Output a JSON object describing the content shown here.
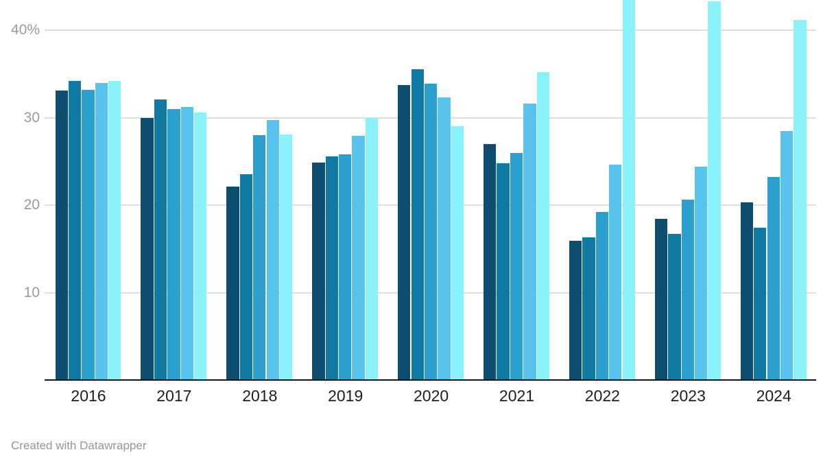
{
  "footer": {
    "credit": "Created with Datawrapper"
  },
  "chart_data": {
    "type": "bar",
    "title": "",
    "xlabel": "",
    "ylabel": "",
    "legend": "none",
    "grid": "horizontal",
    "ylim": [
      0,
      43.4
    ],
    "y_ticks": [
      {
        "value": 10,
        "label": "10"
      },
      {
        "value": 20,
        "label": "20"
      },
      {
        "value": 30,
        "label": "30"
      },
      {
        "value": 40,
        "label": "40%"
      }
    ],
    "categories": [
      "2016",
      "2017",
      "2018",
      "2019",
      "2020",
      "2021",
      "2022",
      "2023",
      "2024"
    ],
    "series": [
      {
        "name": "shade-1-darkest-blue",
        "color": "#0d4e70",
        "values": [
          33.1,
          30.0,
          22.1,
          24.9,
          33.7,
          27.0,
          15.9,
          18.4,
          20.3
        ]
      },
      {
        "name": "shade-2-dark-blue",
        "color": "#0f7ba5",
        "values": [
          34.2,
          32.1,
          23.5,
          25.6,
          35.5,
          24.8,
          16.3,
          16.7,
          17.4
        ]
      },
      {
        "name": "shade-3-medium-blue",
        "color": "#2b9fce",
        "values": [
          33.2,
          31.0,
          28.0,
          25.8,
          33.9,
          26.0,
          19.2,
          20.6,
          23.2
        ]
      },
      {
        "name": "shade-4-light-blue",
        "color": "#58c4ee",
        "values": [
          34.0,
          31.2,
          29.7,
          27.9,
          32.3,
          31.6,
          24.6,
          24.4,
          28.5
        ]
      },
      {
        "name": "shade-5-pale-cyan",
        "color": "#8af2fb",
        "values": [
          34.2,
          30.6,
          28.1,
          30.0,
          29.0,
          35.2,
          44.5,
          43.3,
          41.2
        ]
      }
    ]
  }
}
